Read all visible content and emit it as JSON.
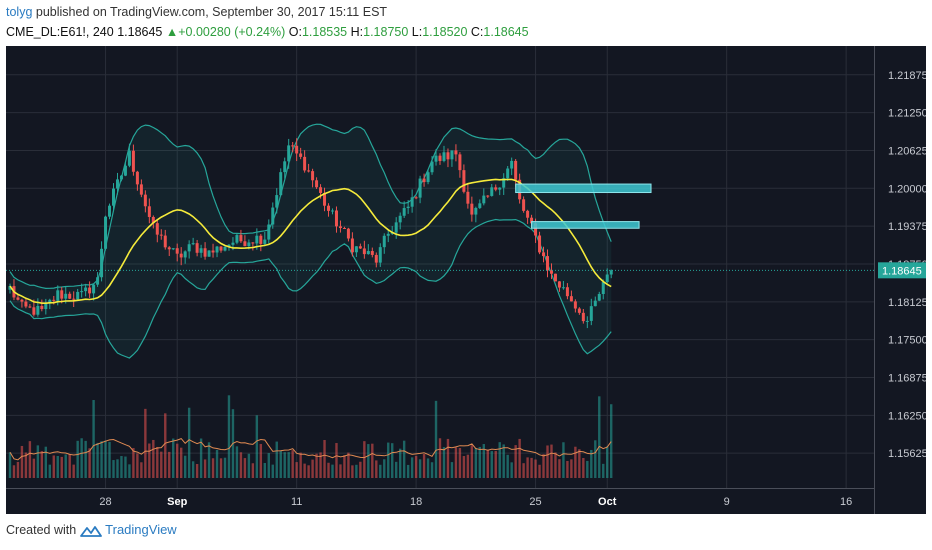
{
  "header": {
    "user": "tolyg",
    "published": "published on TradingView.com, September 30, 2017 15:11 EST",
    "symbol": "CME_DL:E61!, 240",
    "price": "1.18645",
    "change": "+0.00280 (+0.24%)",
    "o_label": "O:",
    "o_value": "1.18535",
    "h_label": "H:",
    "h_value": "1.18750",
    "l_label": "L:",
    "l_value": "1.18520",
    "c_label": "C:",
    "c_value": "1.18645"
  },
  "footer": {
    "created_with": "Created with",
    "brand": "TradingView",
    "logo_icon": "tradingview-logo-icon"
  },
  "colors": {
    "background": "#131722",
    "grid": "#2a2e39",
    "up": "#26a69a",
    "down": "#ef5350",
    "ma": "#f5eb3b",
    "bands": "#26a69a",
    "zone": "#3ec8d2"
  },
  "chart_data": {
    "type": "candlestick",
    "title": "",
    "x_tick_labels": [
      "28",
      "Sep",
      "11",
      "18",
      "25",
      "Oct",
      "9",
      "16"
    ],
    "y_ticks": [
      1.21875,
      1.2125,
      1.20625,
      1.2,
      1.19375,
      1.1875,
      1.18125,
      1.175,
      1.16875,
      1.1625,
      1.15625
    ],
    "y_tick_labels": [
      "1.21875",
      "1.21250",
      "1.20625",
      "1.20000",
      "1.19375",
      "1.18750",
      "1.18125",
      "1.17500",
      "1.16875",
      "1.16250",
      "1.15625"
    ],
    "ylim": [
      1.1505,
      1.2235
    ],
    "x_range_bars": [
      -1,
      217
    ],
    "tick_bar_index": [
      24,
      42,
      72,
      102,
      132,
      150,
      180,
      210
    ],
    "last_price": 1.18645,
    "last_price_label": "1.18645",
    "anchors": [
      [
        0,
        1.1835
      ],
      [
        3,
        1.1802
      ],
      [
        8,
        1.1796
      ],
      [
        12,
        1.1825
      ],
      [
        18,
        1.1822
      ],
      [
        22,
        1.1848
      ],
      [
        24,
        1.1958
      ],
      [
        30,
        1.2055
      ],
      [
        36,
        1.1932
      ],
      [
        42,
        1.1885
      ],
      [
        46,
        1.1905
      ],
      [
        50,
        1.1893
      ],
      [
        56,
        1.1912
      ],
      [
        64,
        1.192
      ],
      [
        70,
        1.207
      ],
      [
        74,
        1.204
      ],
      [
        80,
        1.1963
      ],
      [
        86,
        1.1905
      ],
      [
        92,
        1.1882
      ],
      [
        95,
        1.1925
      ],
      [
        100,
        1.1968
      ],
      [
        106,
        1.2045
      ],
      [
        112,
        1.2058
      ],
      [
        116,
        1.1952
      ],
      [
        122,
        1.2002
      ],
      [
        126,
        1.2042
      ],
      [
        128,
        1.1978
      ],
      [
        132,
        1.1918
      ],
      [
        136,
        1.1855
      ],
      [
        140,
        1.1825
      ],
      [
        145,
        1.178
      ],
      [
        148,
        1.1825
      ],
      [
        151,
        1.1864
      ]
    ],
    "resistance_zones": [
      {
        "from_bar": 127,
        "to_bar": 161,
        "low": 1.1993,
        "high": 1.2007
      },
      {
        "from_bar": 131,
        "to_bar": 158,
        "low": 1.1934,
        "high": 1.1945
      }
    ],
    "indicators": [
      "SMA(20) yellow line",
      "Bollinger Bands(20,2)",
      "Volume histogram"
    ]
  }
}
